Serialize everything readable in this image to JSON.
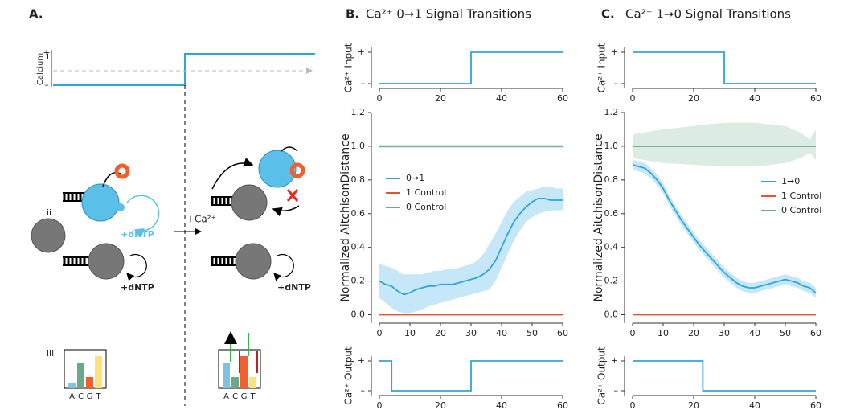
{
  "panel_a": {
    "label": "A.",
    "rows": [
      "i",
      "ii",
      "iii"
    ],
    "calcium_axis": {
      "label": "Calcium",
      "plus": "+",
      "minus": "–"
    },
    "stimulus": "+Ca²⁺",
    "dntp_labels": [
      "+dNTP",
      "+dNTP",
      "+dNTP"
    ],
    "histograms": [
      {
        "categories": [
          "A",
          "C",
          "G",
          "T"
        ],
        "colors": [
          "#7ec3e0",
          "#6aaa8a",
          "#f0602f",
          "#fbe27a"
        ],
        "values": [
          0.15,
          0.8,
          0.35,
          1.0
        ]
      },
      {
        "categories": [
          "A",
          "C",
          "G",
          "T"
        ],
        "colors": [
          "#7ec3e0",
          "#6aaa8a",
          "#f0602f",
          "#fbe27a"
        ],
        "values": [
          0.8,
          0.35,
          1.0,
          0.35
        ]
      }
    ]
  },
  "panels": [
    {
      "label": "B.",
      "title": "Ca²⁺  0➞1 Signal Transitions"
    },
    {
      "label": "C.",
      "title": "Ca²⁺  1➞0 Signal Transitions"
    }
  ],
  "chart_data": [
    {
      "type": "step",
      "ylabel": "Ca²⁺ Input",
      "xlim": [
        0,
        60
      ],
      "xticks": [
        0,
        20,
        40,
        60
      ],
      "ylim": [
        0,
        1
      ],
      "yticks": [
        {
          "value": 0,
          "label": "–"
        },
        {
          "value": 1,
          "label": "+"
        }
      ],
      "series": [
        {
          "color": "#2ea6d9",
          "x": [
            0,
            30,
            30,
            60
          ],
          "values": [
            0,
            0,
            1,
            1
          ]
        }
      ]
    },
    {
      "type": "line",
      "ylabel": "Normalized AitchisonDistance",
      "xlim": [
        0,
        60
      ],
      "xticks": [
        0,
        10,
        20,
        30,
        40,
        50,
        60
      ],
      "ylim": [
        -0.05,
        1.2
      ],
      "yticks": [
        {
          "value": 0,
          "label": "0.0"
        },
        0.2,
        0.4,
        0.6,
        0.8,
        {
          "value": 1,
          "label": "1.0"
        },
        1.2
      ],
      "legend": "left",
      "series": [
        {
          "name": "0➞1",
          "color": "#2ea6d9",
          "band_color": "#c6e7f7",
          "x": [
            0,
            2,
            4,
            6,
            8,
            10,
            12,
            14,
            16,
            18,
            20,
            22,
            24,
            26,
            28,
            30,
            32,
            34,
            36,
            38,
            40,
            42,
            44,
            46,
            48,
            50,
            52,
            54,
            56,
            58,
            60
          ],
          "values": [
            0.2,
            0.18,
            0.17,
            0.14,
            0.12,
            0.13,
            0.15,
            0.16,
            0.17,
            0.17,
            0.18,
            0.18,
            0.18,
            0.19,
            0.2,
            0.21,
            0.22,
            0.24,
            0.27,
            0.32,
            0.4,
            0.48,
            0.55,
            0.6,
            0.64,
            0.67,
            0.69,
            0.69,
            0.68,
            0.68,
            0.68
          ],
          "band_lower": [
            0.1,
            0.07,
            0.04,
            0.02,
            0.01,
            0.01,
            0.02,
            0.03,
            0.05,
            0.06,
            0.07,
            0.08,
            0.09,
            0.1,
            0.11,
            0.12,
            0.13,
            0.14,
            0.15,
            0.2,
            0.28,
            0.36,
            0.44,
            0.5,
            0.55,
            0.58,
            0.6,
            0.61,
            0.62,
            0.62,
            0.62
          ],
          "band_upper": [
            0.3,
            0.29,
            0.28,
            0.26,
            0.24,
            0.24,
            0.24,
            0.24,
            0.25,
            0.26,
            0.26,
            0.27,
            0.27,
            0.28,
            0.29,
            0.3,
            0.32,
            0.36,
            0.42,
            0.48,
            0.55,
            0.62,
            0.67,
            0.7,
            0.73,
            0.74,
            0.75,
            0.76,
            0.76,
            0.75,
            0.75
          ]
        },
        {
          "name": "1 Control",
          "color": "#e8532b",
          "x": [
            0,
            60
          ],
          "values": [
            0,
            0
          ]
        },
        {
          "name": "0 Control",
          "color": "#6aaa8a",
          "band_color": "#dcece3",
          "x": [
            0,
            60
          ],
          "values": [
            1,
            1
          ],
          "band_lower": [
            0.99,
            0.99
          ],
          "band_upper": [
            1.01,
            1.01
          ]
        }
      ]
    },
    {
      "type": "step",
      "ylabel": "Ca²⁺ Output",
      "xlim": [
        0,
        60
      ],
      "xticks": [
        0,
        20,
        40,
        60
      ],
      "ylim": [
        0,
        1
      ],
      "yticks": [
        {
          "value": 0,
          "label": "–"
        },
        {
          "value": 1,
          "label": "+"
        }
      ],
      "series": [
        {
          "color": "#2ea6d9",
          "x": [
            0,
            4,
            4,
            30,
            30,
            60
          ],
          "values": [
            1,
            1,
            0,
            0,
            1,
            1
          ]
        }
      ]
    },
    {
      "type": "step",
      "ylabel": "Ca²⁺ Input",
      "xlim": [
        0,
        60
      ],
      "xticks": [
        0,
        20,
        40,
        60
      ],
      "ylim": [
        0,
        1
      ],
      "yticks": [
        {
          "value": 0,
          "label": "–"
        },
        {
          "value": 1,
          "label": "+"
        }
      ],
      "series": [
        {
          "color": "#2ea6d9",
          "x": [
            0,
            30,
            30,
            60
          ],
          "values": [
            1,
            1,
            0,
            0
          ]
        }
      ]
    },
    {
      "type": "line",
      "ylabel": "Normalized AitchisonDistance",
      "xlim": [
        0,
        60
      ],
      "xticks": [
        0,
        10,
        20,
        30,
        40,
        50,
        60
      ],
      "ylim": [
        -0.05,
        1.2
      ],
      "yticks": [
        {
          "value": 0,
          "label": "0.0"
        },
        0.2,
        0.4,
        0.6,
        0.8,
        {
          "value": 1,
          "label": "1.0"
        },
        1.2
      ],
      "legend": "right",
      "series": [
        {
          "name": "1➞0",
          "color": "#2ea6d9",
          "band_color": "#c6e7f7",
          "x": [
            0,
            2,
            4,
            6,
            8,
            10,
            12,
            14,
            16,
            18,
            20,
            22,
            24,
            26,
            28,
            30,
            32,
            34,
            36,
            38,
            40,
            42,
            44,
            46,
            48,
            50,
            52,
            54,
            56,
            58,
            60
          ],
          "values": [
            0.89,
            0.88,
            0.87,
            0.84,
            0.8,
            0.75,
            0.68,
            0.62,
            0.56,
            0.51,
            0.46,
            0.41,
            0.37,
            0.33,
            0.29,
            0.25,
            0.22,
            0.19,
            0.17,
            0.16,
            0.16,
            0.17,
            0.18,
            0.19,
            0.2,
            0.21,
            0.2,
            0.19,
            0.17,
            0.16,
            0.13
          ],
          "band_lower": [
            0.86,
            0.85,
            0.84,
            0.81,
            0.77,
            0.72,
            0.65,
            0.59,
            0.53,
            0.48,
            0.43,
            0.38,
            0.34,
            0.3,
            0.26,
            0.22,
            0.19,
            0.16,
            0.14,
            0.13,
            0.13,
            0.14,
            0.15,
            0.16,
            0.17,
            0.18,
            0.17,
            0.16,
            0.14,
            0.13,
            0.1
          ],
          "band_upper": [
            0.92,
            0.91,
            0.9,
            0.87,
            0.83,
            0.78,
            0.71,
            0.65,
            0.59,
            0.54,
            0.49,
            0.44,
            0.4,
            0.36,
            0.32,
            0.28,
            0.25,
            0.22,
            0.2,
            0.19,
            0.19,
            0.2,
            0.21,
            0.22,
            0.23,
            0.24,
            0.23,
            0.22,
            0.2,
            0.19,
            0.16
          ]
        },
        {
          "name": "1 Control",
          "color": "#e8532b",
          "x": [
            0,
            60
          ],
          "values": [
            0,
            0
          ]
        },
        {
          "name": "0 Control",
          "color": "#6aaa8a",
          "band_color": "#dcece3",
          "x": [
            0,
            10,
            20,
            30,
            40,
            50,
            55,
            58,
            60
          ],
          "values": [
            1,
            1,
            1,
            1,
            1,
            1,
            1,
            1,
            1
          ],
          "band_lower": [
            0.93,
            0.9,
            0.89,
            0.88,
            0.88,
            0.9,
            0.93,
            0.96,
            0.92
          ],
          "band_upper": [
            1.07,
            1.1,
            1.12,
            1.14,
            1.14,
            1.12,
            1.08,
            1.04,
            1.1
          ]
        }
      ]
    },
    {
      "type": "step",
      "ylabel": "Ca²⁺ Output",
      "xlim": [
        0,
        60
      ],
      "xticks": [
        0,
        20,
        40,
        60
      ],
      "ylim": [
        0,
        1
      ],
      "yticks": [
        {
          "value": 0,
          "label": "–"
        },
        {
          "value": 1,
          "label": "+"
        }
      ],
      "series": [
        {
          "color": "#2ea6d9",
          "x": [
            0,
            23,
            23,
            60
          ],
          "values": [
            1,
            1,
            0,
            0
          ]
        }
      ]
    }
  ]
}
